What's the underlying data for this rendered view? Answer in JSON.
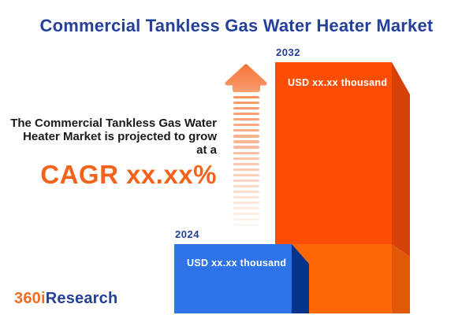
{
  "title": "Commercial Tankless Gas Water Heater Market",
  "annotation": {
    "line1": "The Commercial Tankless Gas Water",
    "line2": "Heater Market is projected to grow",
    "line3": "at a",
    "cagr": "CAGR xx.xx%"
  },
  "bars": [
    {
      "year": "2024",
      "value_label": "USD xx.xx thousand",
      "face_color": "#2E74E8",
      "side_color": "#06338C"
    },
    {
      "year": "2032",
      "value_label": "USD xx.xx thousand",
      "face_color": "#FB4E04",
      "face_color_lower": "#FE6606",
      "side_color": "#D54108",
      "side_color_lower": "#E05906"
    }
  ],
  "arrow": {
    "meaning": "growth-arrow",
    "head_color_top": "#F4753C",
    "head_color_bottom": "#F99E70",
    "stripe_color": "#F98E5B",
    "stripe_count": 24
  },
  "logo": {
    "part1": "360i",
    "part2": "Research",
    "part1_color": "#F26C21",
    "part2_color": "#24409A"
  },
  "colors": {
    "title": "#24409A",
    "body_text": "#1A1A1A",
    "cagr": "#F4631C",
    "background": "#FFFFFF"
  },
  "chart_data": {
    "type": "bar",
    "categories": [
      "2024",
      "2032"
    ],
    "values": [
      "USD xx.xx thousand",
      "USD xx.xx thousand"
    ],
    "title": "Commercial Tankless Gas Water Heater Market",
    "xlabel": "",
    "ylabel": "",
    "annotation": "The Commercial Tankless Gas Water Heater Market is projected to grow at a CAGR xx.xx%",
    "bar_colors": [
      "#2E74E8",
      "#FB4E04"
    ],
    "legend": "none",
    "grid": "off"
  }
}
